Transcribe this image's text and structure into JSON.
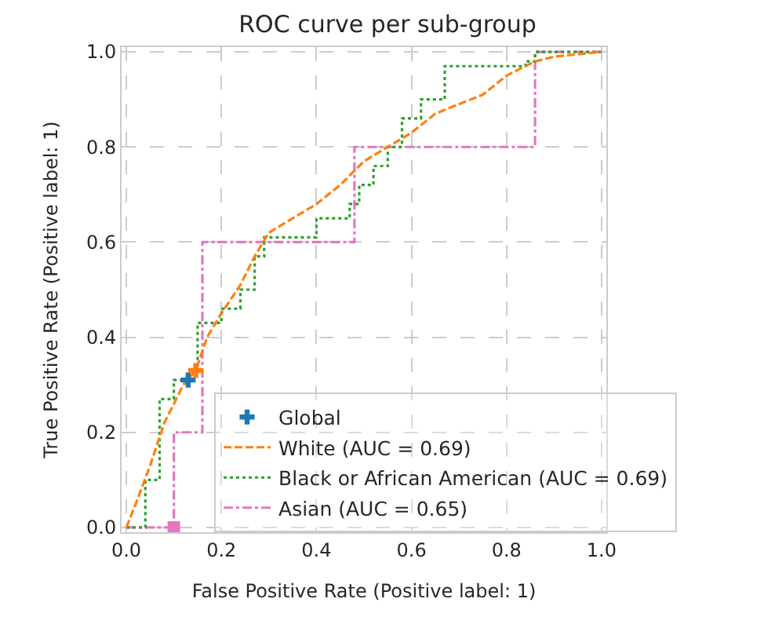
{
  "chart_data": {
    "type": "line",
    "title": "ROC curve per sub-group",
    "xlabel": "False Positive Rate (Positive label: 1)",
    "ylabel": "True Positive Rate (Positive label: 1)",
    "xlim": [
      -0.01,
      1.01
    ],
    "ylim": [
      -0.01,
      1.01
    ],
    "xticks": [
      {
        "value": 0,
        "label": "0.0"
      },
      0.2,
      0.4,
      0.6,
      0.8,
      {
        "value": 1,
        "label": "1.0"
      }
    ],
    "yticks": [
      {
        "value": 0,
        "label": "0.0"
      },
      0.2,
      0.4,
      0.6,
      0.8,
      {
        "value": 1,
        "label": "1.0"
      }
    ],
    "grid": true,
    "legend": "bottom right",
    "series": [
      {
        "name": "Global",
        "type": "scatter",
        "marker": "cross",
        "color": "#1f77b4",
        "x": [
          0.13
        ],
        "values": [
          0.31
        ]
      },
      {
        "name": "White (AUC = 0.69)",
        "color": "#ff7f0e",
        "line_style": "dashed",
        "x": [
          0,
          0.02,
          0.05,
          0.08,
          0.12,
          0.146,
          0.17,
          0.2,
          0.24,
          0.27,
          0.3,
          0.35,
          0.4,
          0.45,
          0.5,
          0.55,
          0.6,
          0.65,
          0.7,
          0.75,
          0.8,
          0.86,
          0.9,
          1
        ],
        "values": [
          0,
          0.05,
          0.13,
          0.22,
          0.3,
          0.33,
          0.4,
          0.45,
          0.51,
          0.57,
          0.62,
          0.65,
          0.68,
          0.72,
          0.77,
          0.8,
          0.83,
          0.87,
          0.89,
          0.91,
          0.95,
          0.98,
          0.99,
          1
        ]
      },
      {
        "name": "Black or African American (AUC = 0.69)",
        "color": "#2ca02c",
        "line_style": "dotted",
        "x": [
          0,
          0.04,
          0.04,
          0.07,
          0.07,
          0.1,
          0.1,
          0.13,
          0.13,
          0.15,
          0.15,
          0.2,
          0.2,
          0.24,
          0.24,
          0.27,
          0.27,
          0.29,
          0.29,
          0.4,
          0.4,
          0.47,
          0.47,
          0.49,
          0.49,
          0.52,
          0.52,
          0.55,
          0.55,
          0.58,
          0.58,
          0.62,
          0.62,
          0.67,
          0.67,
          0.84,
          0.84,
          0.86,
          0.86,
          1
        ],
        "values": [
          0,
          0,
          0.1,
          0.1,
          0.27,
          0.27,
          0.31,
          0.31,
          0.33,
          0.33,
          0.43,
          0.43,
          0.46,
          0.46,
          0.5,
          0.5,
          0.57,
          0.57,
          0.61,
          0.61,
          0.65,
          0.65,
          0.68,
          0.68,
          0.72,
          0.72,
          0.76,
          0.76,
          0.8,
          0.8,
          0.86,
          0.86,
          0.9,
          0.9,
          0.97,
          0.97,
          0.98,
          0.98,
          1,
          1
        ]
      },
      {
        "name": "Asian (AUC = 0.65)",
        "color": "#e377c2",
        "line_style": "dashdot",
        "x": [
          0,
          0.1,
          0.1,
          0.16,
          0.16,
          0.48,
          0.48,
          0.86,
          0.86,
          1
        ],
        "values": [
          0,
          0,
          0.2,
          0.2,
          0.6,
          0.6,
          0.8,
          0.8,
          1,
          1
        ]
      },
      {
        "type": "scatter",
        "marker": "cross",
        "color": "#ff7f0e",
        "x": [
          0.146
        ],
        "values": [
          0.33
        ]
      },
      {
        "type": "scatter",
        "marker": "square",
        "color": "#e377c2",
        "x": [
          0.1
        ],
        "values": [
          0
        ]
      }
    ]
  }
}
